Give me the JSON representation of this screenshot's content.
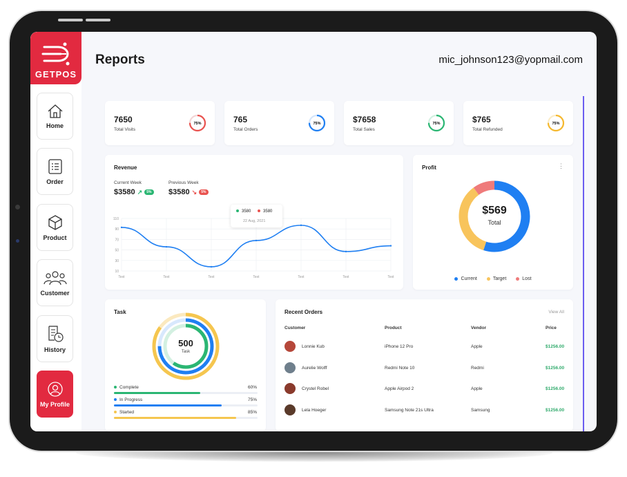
{
  "app": {
    "brand": "GETPOS"
  },
  "header": {
    "title": "Reports",
    "email": "mic_johnson123@yopmail.com"
  },
  "sidebar": {
    "items": [
      {
        "label": "Home",
        "icon": "home-icon"
      },
      {
        "label": "Order",
        "icon": "order-list-icon"
      },
      {
        "label": "Product",
        "icon": "box-icon"
      },
      {
        "label": "Customer",
        "icon": "users-icon"
      },
      {
        "label": "History",
        "icon": "history-icon"
      },
      {
        "label": "My Profile",
        "icon": "profile-icon",
        "active": true
      }
    ]
  },
  "stats": [
    {
      "value": "7650",
      "label": "Total Visits",
      "percent": "75%",
      "color": "#e9534f"
    },
    {
      "value": "765",
      "label": "Total Orders",
      "percent": "75%",
      "color": "#1f7ff2"
    },
    {
      "value": "$7658",
      "label": "Total Sales",
      "percent": "75%",
      "color": "#2bb673"
    },
    {
      "value": "$765",
      "label": "Total Refunded",
      "percent": "75%",
      "color": "#f5b82e"
    }
  ],
  "revenue": {
    "title": "Revenue",
    "current_label": "Current Week",
    "current_value": "$3580",
    "current_badge": "5%",
    "previous_label": "Previous Week",
    "previous_value": "$3580",
    "previous_badge": "5%",
    "tooltip": {
      "a": "3580",
      "b": "3580",
      "date": "22 Aug, 2021"
    }
  },
  "chart_data": {
    "type": "line",
    "title": "Revenue",
    "x": [
      "Text",
      "Text",
      "Text",
      "Text",
      "Text",
      "Text",
      "Text"
    ],
    "y_ticks": [
      10,
      30,
      50,
      70,
      90,
      110
    ],
    "ylim": [
      10,
      110
    ],
    "series": [
      {
        "values": [
          93,
          56,
          18,
          68,
          97,
          47,
          58
        ]
      }
    ],
    "grid": true
  },
  "profit": {
    "title": "Profit",
    "value": "$569",
    "label": "Total",
    "segments": [
      {
        "name": "Current",
        "value": 55,
        "color": "#1f7ff2"
      },
      {
        "name": "Target",
        "value": 35,
        "color": "#f8c45c"
      },
      {
        "name": "Lost",
        "value": 10,
        "color": "#ef7b7b"
      }
    ]
  },
  "task": {
    "title": "Task",
    "value": "500",
    "label": "Task",
    "items": [
      {
        "label": "Complete",
        "percent": "60%",
        "fraction": 0.6,
        "color": "#2bb673"
      },
      {
        "label": "In Progress",
        "percent": "75%",
        "fraction": 0.75,
        "color": "#1f7ff2"
      },
      {
        "label": "Started",
        "percent": "85%",
        "fraction": 0.85,
        "color": "#f5c64f"
      }
    ]
  },
  "orders": {
    "title": "Recent Orders",
    "view_all": "View All",
    "headers": [
      "Customer",
      "Product",
      "Vendor",
      "Price"
    ],
    "rows": [
      {
        "customer": "Lonnie Kub",
        "product": "iPhone 12 Pro",
        "vendor": "Apple",
        "price": "$1256.00",
        "avatar": "#b5473a"
      },
      {
        "customer": "Aurelie Wolff",
        "product": "Redmi Note 10",
        "vendor": "Redmi",
        "price": "$1256.00",
        "avatar": "#6f7f8c"
      },
      {
        "customer": "Crystel Robel",
        "product": "Apple Airpod 2",
        "vendor": "Apple",
        "price": "$1256.00",
        "avatar": "#8a3a2c"
      },
      {
        "customer": "Lela Hoeger",
        "product": "Samsung Note 21s Ultra",
        "vendor": "Samsung",
        "price": "$1256.00",
        "avatar": "#5a3a2a"
      }
    ]
  }
}
